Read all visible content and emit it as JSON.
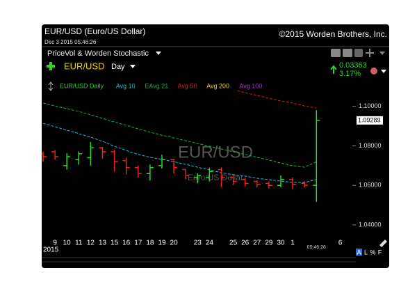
{
  "header": {
    "title": "EUR/USD (Euro/US Dollar)",
    "copyright": "©2015 Worden Brothers, Inc.",
    "timestamp": "Dec 3 2015 05:46:26",
    "indicator_set": "PriceVol & Worden Stochastic",
    "symbol": "EUR/USD",
    "period": "Day",
    "change": "0.03363",
    "change_pct": "3.17%"
  },
  "footer": {
    "buttons": [
      "A",
      "L",
      "%",
      "F"
    ]
  },
  "chart_data": {
    "type": "ohlc",
    "name": "EUR/USD Daily",
    "watermark": "EUR/USD",
    "watermark_sub": "Euro/US Dollar",
    "categories": [
      null,
      "9",
      "10",
      "11",
      "12",
      "13",
      "15",
      "16",
      "17",
      "18",
      "19",
      "20",
      null,
      "23",
      "24",
      null,
      "25",
      "26",
      "27",
      "29",
      "30",
      "1",
      null,
      "05:46:26",
      null,
      "6"
    ],
    "year": "2015",
    "open": [
      1.076,
      1.077,
      1.07,
      1.073,
      1.074,
      1.079,
      1.077,
      1.0725,
      1.069,
      1.066,
      1.07,
      1.073,
      1.068,
      1.064,
      1.064,
      1.068,
      1.064,
      1.063,
      1.062,
      1.061,
      1.06,
      1.063,
      1.061,
      1.06,
      null,
      null
    ],
    "high": [
      1.077,
      1.0778,
      1.0762,
      1.0772,
      1.082,
      1.0795,
      1.078,
      1.074,
      1.07,
      1.0705,
      1.0755,
      1.0735,
      1.068,
      1.066,
      1.069,
      1.069,
      1.065,
      1.064,
      1.0625,
      1.062,
      1.065,
      1.064,
      1.062,
      1.0981,
      null,
      null
    ],
    "low": [
      1.072,
      1.073,
      1.068,
      1.0705,
      1.07,
      1.0735,
      1.067,
      1.0655,
      1.064,
      1.0625,
      1.0685,
      1.066,
      1.063,
      1.061,
      1.062,
      1.059,
      1.06,
      1.0595,
      1.059,
      1.0585,
      1.059,
      1.058,
      1.059,
      1.0516,
      null,
      null
    ],
    "close": [
      1.0745,
      1.0745,
      1.0745,
      1.076,
      1.079,
      1.077,
      1.072,
      1.069,
      1.066,
      1.069,
      1.073,
      1.069,
      1.065,
      1.065,
      1.067,
      1.064,
      1.062,
      1.061,
      1.0605,
      1.06,
      1.063,
      1.0605,
      1.06,
      1.0929,
      null,
      null
    ],
    "up_color": "#22dd22",
    "down_color": "#ee2222",
    "name_color": "#33cc33",
    "series": [
      {
        "name": "Avg 10",
        "color": "#22b8d8",
        "values": [
          1.0914,
          1.0897,
          1.0879,
          1.0862,
          1.0844,
          1.0823,
          1.0798,
          1.0777,
          1.0756,
          1.0742,
          1.0731,
          1.072,
          1.0706,
          1.0692,
          1.0678,
          1.0664,
          1.0654,
          1.0647,
          1.0636,
          1.0629,
          1.0622,
          1.0615,
          1.0615,
          1.0629,
          null,
          null
        ]
      },
      {
        "name": "EAvg 21",
        "color": "#22aa44",
        "values": [
          1.1017,
          1.1002,
          1.0988,
          1.0974,
          1.0957,
          1.0939,
          1.0921,
          1.0904,
          1.0886,
          1.0869,
          1.0854,
          1.084,
          1.0826,
          1.0812,
          1.0798,
          1.0784,
          1.077,
          1.0756,
          1.0742,
          1.0728,
          1.0713,
          1.0699,
          1.0692,
          1.072,
          null,
          null
        ]
      },
      {
        "name": "Avg 50",
        "color": "#cc2222",
        "values": [
          null,
          null,
          null,
          null,
          null,
          null,
          null,
          null,
          null,
          null,
          null,
          null,
          null,
          null,
          null,
          null,
          1.1084,
          1.1069,
          1.1055,
          1.1041,
          1.1027,
          1.1017,
          1.1002,
          1.0992,
          null,
          null
        ]
      },
      {
        "name": "Avg 200",
        "color": "#e8d820",
        "values": [
          null,
          null,
          null,
          null,
          null,
          null,
          null,
          null,
          null,
          null,
          null,
          null,
          null,
          null,
          null,
          null,
          null,
          null,
          null,
          null,
          null,
          null,
          null,
          null,
          null,
          null
        ]
      },
      {
        "name": "Avg 100",
        "color": "#b030d0",
        "values": [
          null,
          null,
          null,
          null,
          null,
          null,
          null,
          null,
          null,
          null,
          null,
          null,
          null,
          null,
          null,
          null,
          null,
          null,
          null,
          null,
          null,
          null,
          null,
          null,
          null,
          null
        ]
      }
    ],
    "ylim": [
      1.034,
      1.108
    ],
    "yticks": [
      {
        "value": 1.04,
        "label": "1.04000"
      },
      {
        "value": 1.06,
        "label": "1.06000"
      },
      {
        "value": 1.08,
        "label": "1.08000"
      },
      {
        "value": 1.1,
        "label": "1.10000"
      }
    ],
    "last_label": {
      "value": 1.09289,
      "label": "1.09289"
    }
  }
}
